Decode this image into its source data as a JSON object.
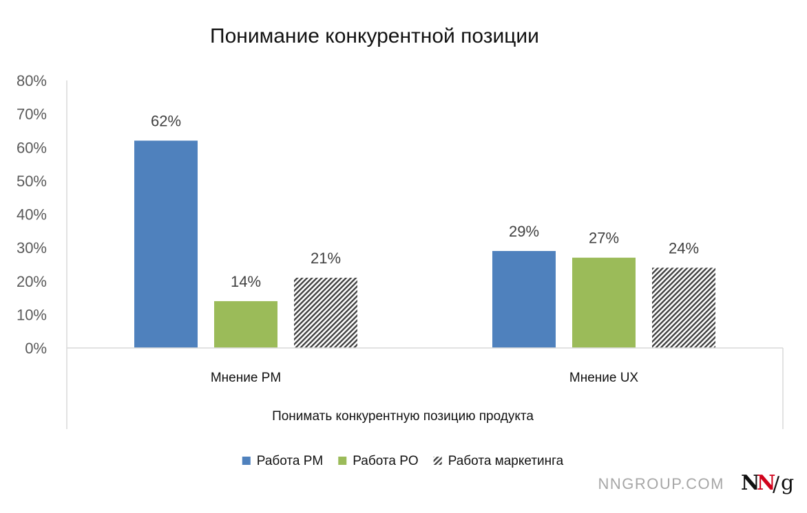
{
  "chart_data": {
    "type": "bar",
    "title": "Понимание конкурентной позиции",
    "xlabel": "Понимать конкурентную позицию продукта",
    "ylabel": "",
    "categories": [
      "Мнение PM",
      "Мнение UX"
    ],
    "series": [
      {
        "name": "Работа PM",
        "values": [
          62,
          29
        ],
        "labels": [
          "62%",
          "29%"
        ],
        "color": "#4f81bd",
        "pattern": "solid"
      },
      {
        "name": "Работа PO",
        "values": [
          14,
          27
        ],
        "labels": [
          "14%",
          "27%"
        ],
        "color": "#9bbb59",
        "pattern": "solid"
      },
      {
        "name": "Работа маркетинга",
        "values": [
          21,
          24
        ],
        "labels": [
          "21%",
          "24%"
        ],
        "color": "#404040",
        "pattern": "diagonal-hatch"
      }
    ],
    "ylim": [
      0,
      80
    ],
    "yticks": [
      "0%",
      "10%",
      "20%",
      "30%",
      "40%",
      "50%",
      "60%",
      "70%",
      "80%"
    ],
    "grid": false,
    "legend_position": "bottom"
  },
  "footer": {
    "site": "NNGROUP.COM",
    "logo_letters": [
      "N",
      "N",
      "/",
      "g"
    ],
    "logo_colors": {
      "first_n": "#111111",
      "second_n": "#d0021b"
    }
  }
}
